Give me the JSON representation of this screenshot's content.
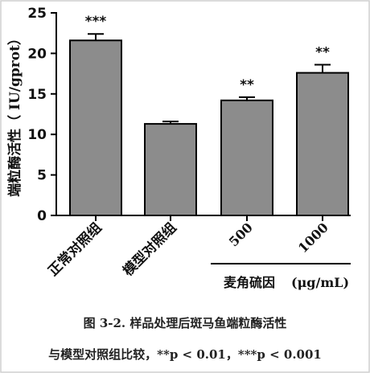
{
  "chart_data": {
    "type": "bar",
    "categories": [
      "正常对照组",
      "模型对照组",
      "500",
      "1000"
    ],
    "values": [
      21.6,
      11.3,
      14.2,
      17.6
    ],
    "errors": [
      0.8,
      0.3,
      0.4,
      1.0
    ],
    "significance": [
      "***",
      "",
      "**",
      "**"
    ],
    "ylabel_cn": "端粒酶活性",
    "ylabel_paren": "（ IU/gprot）",
    "yticks": [
      0,
      5,
      10,
      15,
      20,
      25
    ],
    "ylim": [
      0,
      25
    ],
    "group_label": "麦角硫因",
    "group_unit": "(μg/mL)",
    "bar_color": "#8c8c8c",
    "edge_color": "#000000"
  },
  "caption": {
    "line1": "图 3-2. 样品处理后斑马鱼端粒酶活性",
    "line2": "与模型对照组比较，**p < 0.01，***p < 0.001"
  }
}
